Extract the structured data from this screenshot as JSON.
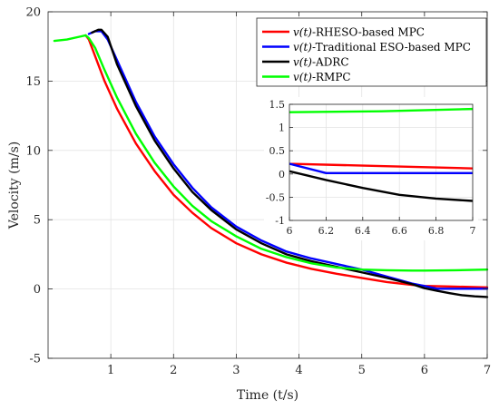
{
  "chart_data": {
    "type": "line",
    "xlabel": "Time (t/s)",
    "ylabel": "Velocity (m/s)",
    "xlim": [
      0,
      7
    ],
    "ylim": [
      -5,
      20
    ],
    "xticks": [
      1,
      2,
      3,
      4,
      5,
      6,
      7
    ],
    "xtick_labels": [
      "1",
      "2",
      "3",
      "4",
      "5",
      "6",
      "7"
    ],
    "yticks": [
      -5,
      0,
      5,
      10,
      15,
      20
    ],
    "ytick_labels": [
      "-5",
      "0",
      "5",
      "10",
      "15",
      "20"
    ],
    "grid": true,
    "legend_position": "top-right",
    "series": [
      {
        "name_prefix": "v(t)",
        "name_suffix": "-RHESO-based MPC",
        "color": "#ff0000",
        "x": [
          0.6,
          0.65,
          0.75,
          0.9,
          1.1,
          1.4,
          1.7,
          2.0,
          2.3,
          2.6,
          3.0,
          3.4,
          3.8,
          4.2,
          4.6,
          5.0,
          5.4,
          5.8,
          6.0,
          6.4,
          7.0
        ],
        "y": [
          18.3,
          18.0,
          16.8,
          15.0,
          13.0,
          10.5,
          8.5,
          6.8,
          5.5,
          4.4,
          3.3,
          2.5,
          1.9,
          1.45,
          1.1,
          0.8,
          0.5,
          0.3,
          0.22,
          0.18,
          0.12
        ]
      },
      {
        "name_prefix": "v(t)",
        "name_suffix": "-Traditional ESO-based MPC",
        "color": "#0000ff",
        "x": [
          0.65,
          0.75,
          0.85,
          0.95,
          1.1,
          1.4,
          1.7,
          2.0,
          2.3,
          2.6,
          3.0,
          3.4,
          3.8,
          4.2,
          4.6,
          5.0,
          5.4,
          5.8,
          6.0,
          6.2,
          7.0
        ],
        "y": [
          18.4,
          18.6,
          18.6,
          18.0,
          16.5,
          13.5,
          11.0,
          9.0,
          7.3,
          5.9,
          4.5,
          3.5,
          2.7,
          2.2,
          1.8,
          1.4,
          0.9,
          0.4,
          0.22,
          0.02,
          0.02
        ]
      },
      {
        "name_prefix": "v(t)",
        "name_suffix": "-ADRC",
        "color": "#000000",
        "x": [
          0.7,
          0.8,
          0.85,
          0.95,
          1.1,
          1.4,
          1.7,
          2.0,
          2.3,
          2.6,
          3.0,
          3.4,
          3.8,
          4.2,
          4.6,
          5.0,
          5.4,
          5.8,
          6.0,
          6.2,
          6.4,
          6.6,
          6.8,
          7.0
        ],
        "y": [
          18.5,
          18.7,
          18.7,
          18.2,
          16.2,
          13.2,
          10.7,
          8.7,
          7.0,
          5.7,
          4.3,
          3.3,
          2.5,
          2.0,
          1.6,
          1.2,
          0.8,
          0.35,
          0.06,
          -0.13,
          -0.3,
          -0.45,
          -0.53,
          -0.58
        ]
      },
      {
        "name_prefix": "v(t)",
        "name_suffix": "-RMPC",
        "color": "#00ff00",
        "x": [
          0.1,
          0.3,
          0.5,
          0.6,
          0.65,
          0.75,
          0.9,
          1.1,
          1.4,
          1.7,
          2.0,
          2.3,
          2.6,
          3.0,
          3.4,
          3.8,
          4.2,
          4.6,
          5.0,
          5.4,
          5.8,
          6.0,
          6.5,
          7.0
        ],
        "y": [
          17.9,
          18.0,
          18.2,
          18.3,
          18.1,
          17.4,
          15.8,
          13.8,
          11.2,
          9.1,
          7.4,
          6.0,
          4.9,
          3.8,
          2.9,
          2.3,
          1.85,
          1.55,
          1.4,
          1.35,
          1.33,
          1.33,
          1.35,
          1.4
        ]
      }
    ],
    "inset": {
      "xlim": [
        6,
        7
      ],
      "ylim": [
        -1,
        1.5
      ],
      "xticks": [
        6,
        6.2,
        6.4,
        6.6,
        6.8,
        7
      ],
      "xtick_labels": [
        "6",
        "6.2",
        "6.4",
        "6.6",
        "6.8",
        "7"
      ],
      "yticks": [
        -1,
        -0.5,
        0,
        0.5,
        1,
        1.5
      ],
      "ytick_labels": [
        "-1",
        "-0.5",
        "0",
        "0.5",
        "1",
        "1.5"
      ]
    }
  }
}
